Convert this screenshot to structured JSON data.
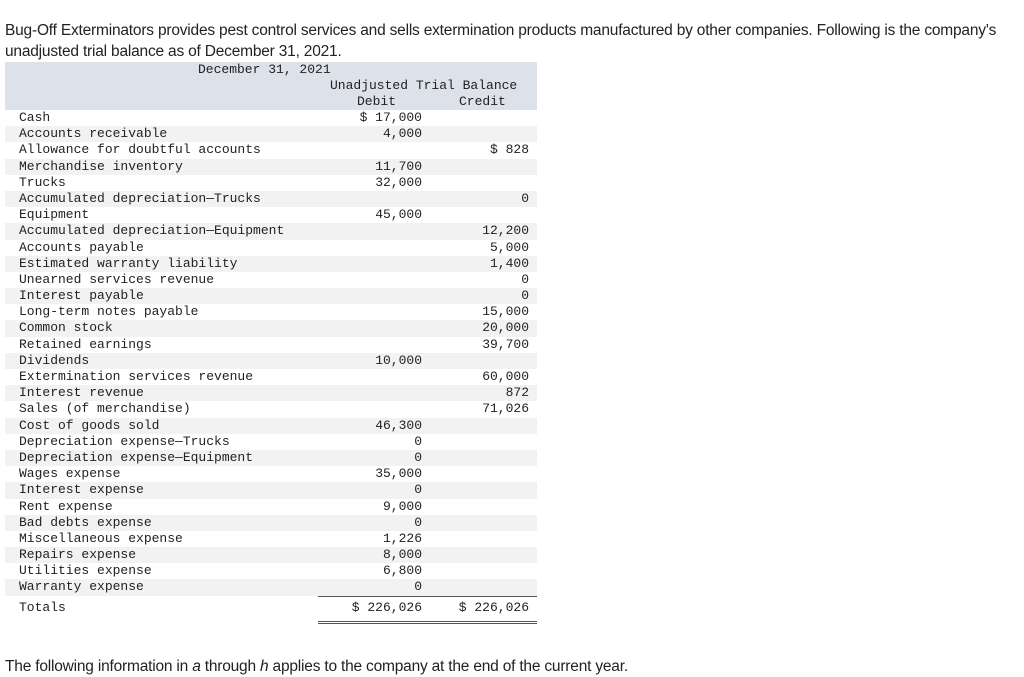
{
  "intro": {
    "text": "Bug-Off Exterminators provides pest control services and sells extermination products manufactured by other companies. Following is the company's unadjusted trial balance as of December 31, 2021."
  },
  "table": {
    "date_header": "December 31, 2021",
    "title_header": "Unadjusted Trial Balance",
    "debit_header": "Debit",
    "credit_header": "Credit",
    "rows": [
      {
        "account": "Cash",
        "debit": "$ 17,000",
        "credit": ""
      },
      {
        "account": "Accounts receivable",
        "debit": "4,000",
        "credit": ""
      },
      {
        "account": "Allowance for doubtful accounts",
        "debit": "",
        "credit": "$ 828"
      },
      {
        "account": "Merchandise inventory",
        "debit": "11,700",
        "credit": ""
      },
      {
        "account": "Trucks",
        "debit": "32,000",
        "credit": ""
      },
      {
        "account": "Accumulated depreciation—Trucks",
        "debit": "",
        "credit": "0"
      },
      {
        "account": "Equipment",
        "debit": "45,000",
        "credit": ""
      },
      {
        "account": "Accumulated depreciation—Equipment",
        "debit": "",
        "credit": "12,200"
      },
      {
        "account": "Accounts payable",
        "debit": "",
        "credit": "5,000"
      },
      {
        "account": "Estimated warranty liability",
        "debit": "",
        "credit": "1,400"
      },
      {
        "account": "Unearned services revenue",
        "debit": "",
        "credit": "0"
      },
      {
        "account": "Interest payable",
        "debit": "",
        "credit": "0"
      },
      {
        "account": "Long-term notes payable",
        "debit": "",
        "credit": "15,000"
      },
      {
        "account": "Common stock",
        "debit": "",
        "credit": "20,000"
      },
      {
        "account": "Retained earnings",
        "debit": "",
        "credit": "39,700"
      },
      {
        "account": "Dividends",
        "debit": "10,000",
        "credit": ""
      },
      {
        "account": "Extermination services revenue",
        "debit": "",
        "credit": "60,000"
      },
      {
        "account": "Interest revenue",
        "debit": "",
        "credit": "872"
      },
      {
        "account": "Sales (of merchandise)",
        "debit": "",
        "credit": "71,026"
      },
      {
        "account": "Cost of goods sold",
        "debit": "46,300",
        "credit": ""
      },
      {
        "account": "Depreciation expense—Trucks",
        "debit": "0",
        "credit": ""
      },
      {
        "account": "Depreciation expense—Equipment",
        "debit": "0",
        "credit": ""
      },
      {
        "account": "Wages expense",
        "debit": "35,000",
        "credit": ""
      },
      {
        "account": "Interest expense",
        "debit": "0",
        "credit": ""
      },
      {
        "account": "Rent expense",
        "debit": "9,000",
        "credit": ""
      },
      {
        "account": "Bad debts expense",
        "debit": "0",
        "credit": ""
      },
      {
        "account": "Miscellaneous expense",
        "debit": "1,226",
        "credit": ""
      },
      {
        "account": "Repairs expense",
        "debit": "8,000",
        "credit": ""
      },
      {
        "account": "Utilities expense",
        "debit": "6,800",
        "credit": ""
      },
      {
        "account": "Warranty expense",
        "debit": "0",
        "credit": ""
      }
    ],
    "totals": {
      "label": "Totals",
      "debit": "$ 226,026",
      "credit": "$ 226,026"
    }
  },
  "outro": {
    "part1": "The following information in ",
    "a": "a",
    "part2": " through ",
    "h": "h",
    "part3": " applies to the company at the end of the current year."
  },
  "colors": {
    "header_bg": "#dde1e9",
    "row_alt_bg": "#f2f2f3",
    "text": "#222222"
  }
}
